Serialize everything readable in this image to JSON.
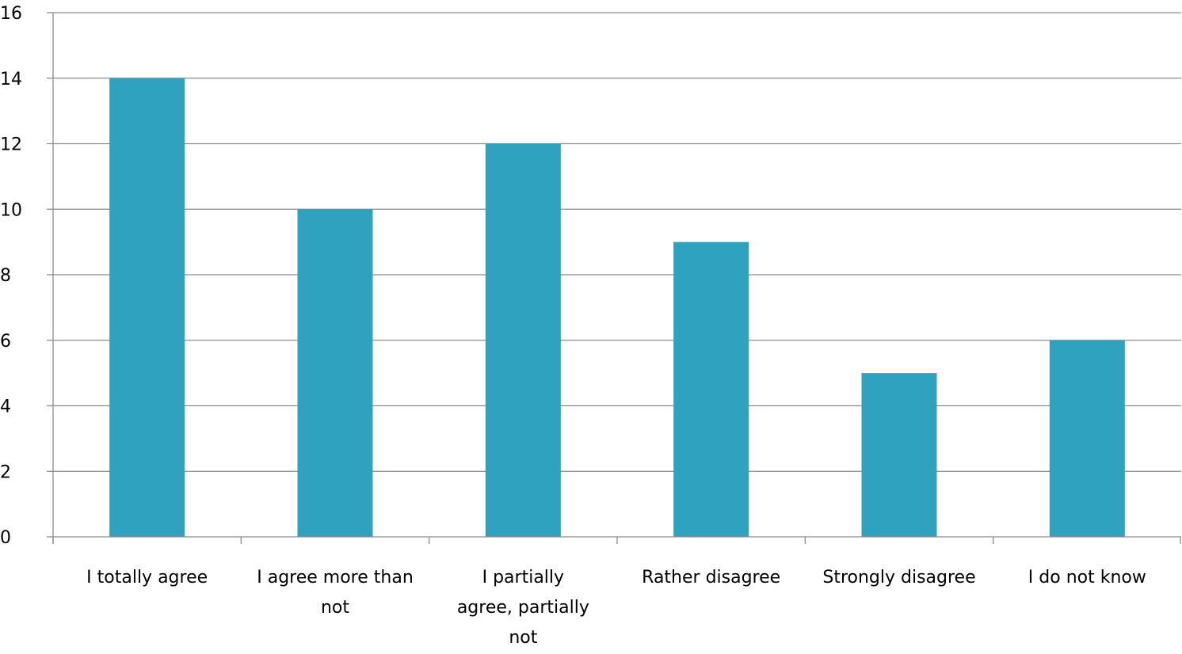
{
  "chart_data": {
    "type": "bar",
    "title": "",
    "xlabel": "",
    "ylabel": "",
    "categories": [
      "I totally agree",
      "I agree more than not",
      "I partially agree, partially not",
      "Rather disagree",
      "Strongly disagree",
      "I do not know"
    ],
    "category_label_lines": [
      [
        "I totally agree"
      ],
      [
        "I agree more than",
        "not"
      ],
      [
        "I partially",
        "agree, partially",
        "not"
      ],
      [
        "Rather disagree"
      ],
      [
        "Strongly disagree"
      ],
      [
        "I do not know"
      ]
    ],
    "values": [
      14,
      10,
      12,
      9,
      5,
      6
    ],
    "ylim": [
      0,
      16
    ],
    "yticks": [
      "0",
      "2",
      "4",
      "6",
      "8",
      "10",
      "12",
      "14",
      "16"
    ],
    "grid": true,
    "legend": "none",
    "bar_color": "#2ea2bf",
    "grid_color": "#8c8c8c",
    "axis_color": "#8c8c8c"
  }
}
